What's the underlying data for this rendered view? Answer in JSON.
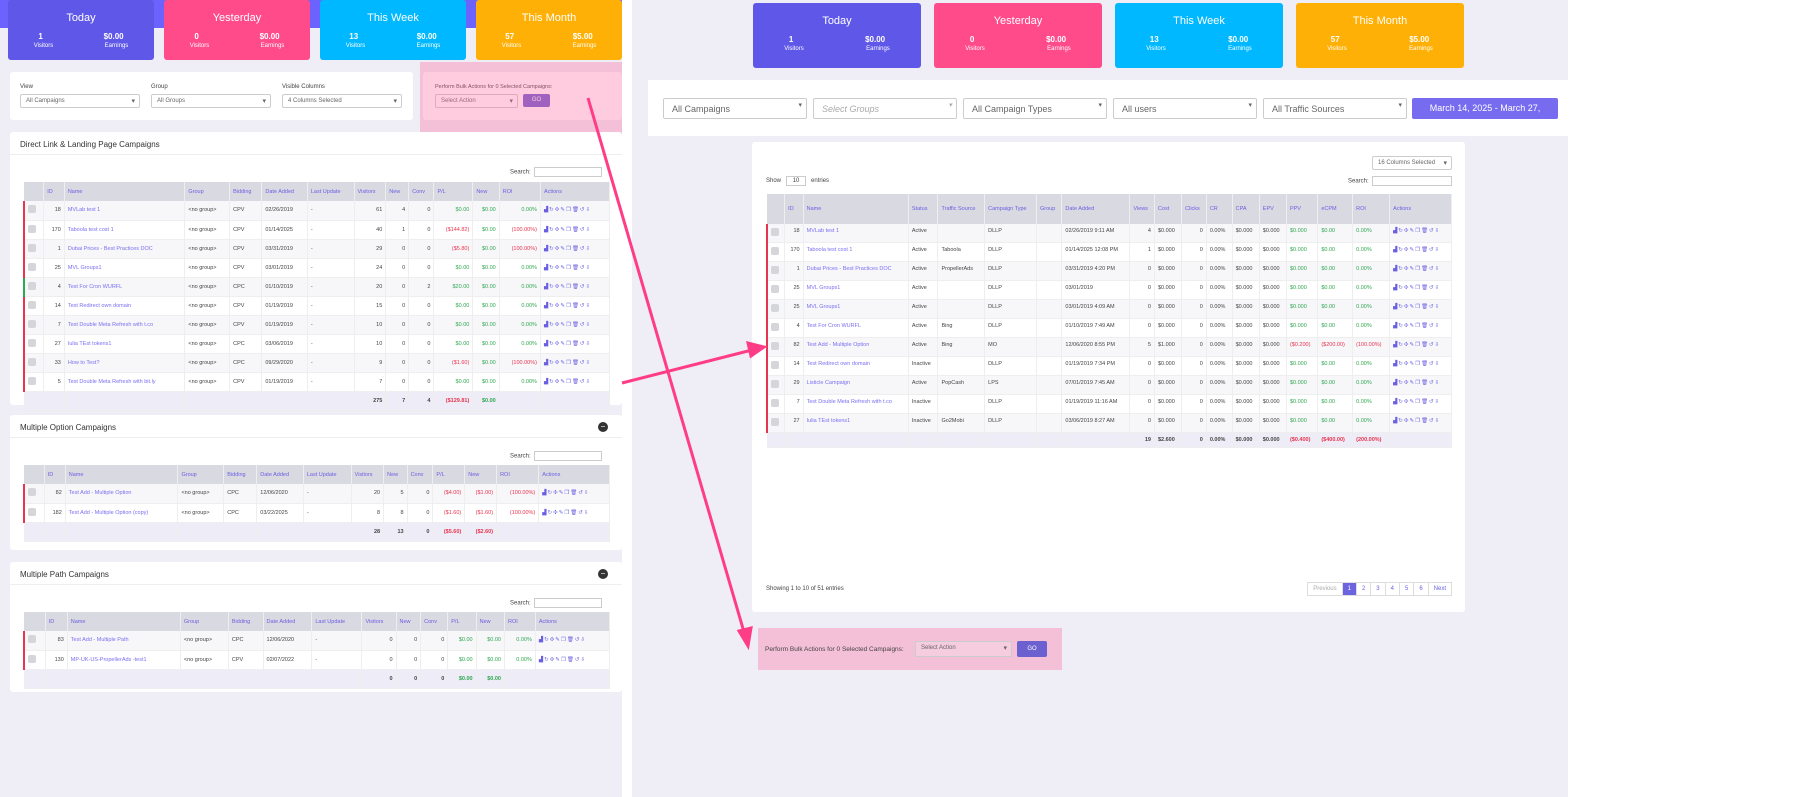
{
  "cards": [
    {
      "title": "Today",
      "visitors": "1",
      "earnings": "$0.00",
      "color": "#5f57e8"
    },
    {
      "title": "Yesterday",
      "visitors": "0",
      "earnings": "$0.00",
      "color": "#ff4b8a"
    },
    {
      "title": "This Week",
      "visitors": "13",
      "earnings": "$0.00",
      "color": "#00b8ff"
    },
    {
      "title": "This Month",
      "visitors": "57",
      "earnings": "$5.00",
      "color": "#ffb006"
    }
  ],
  "labels": {
    "visitors": "Visitors",
    "earnings": "Earnings",
    "search": "Search:",
    "show": "Show",
    "entries": "entries"
  },
  "left": {
    "filters": {
      "view_label": "View",
      "view": "All Campaigns",
      "group_label": "Group",
      "group": "All Groups",
      "cols_label": "Visible Columns",
      "cols": "4 Columns Selected"
    },
    "bulk": {
      "label": "Perform Bulk Actions for 0 Selected Campaigns:",
      "select": "Select Action",
      "go": "GO"
    },
    "headers": [
      "",
      "ID",
      "Name",
      "Group",
      "Bidding",
      "Date Added",
      "Last Update",
      "Visitors",
      "New",
      "Conv",
      "P/L",
      "New",
      "ROI",
      "Actions"
    ],
    "sections": [
      {
        "title": "Direct Link & Landing Page Campaigns",
        "rows": [
          [
            "red",
            "18",
            "MVLab test 1",
            "<no group>",
            "CPV",
            "02/26/2019",
            "-",
            "61",
            "4",
            "0",
            "$0.00",
            "$0.00",
            "0.00%"
          ],
          [
            "red",
            "170",
            "Taboola test cost 1",
            "<no group>",
            "CPV",
            "01/14/2025",
            "-",
            "40",
            "1",
            "0",
            "($144.82)",
            "$0.00",
            "(100.00%)"
          ],
          [
            "red",
            "1",
            "Dubai Prices - Best Practices DOC",
            "<no group>",
            "CPV",
            "03/31/2019",
            "-",
            "29",
            "0",
            "0",
            "($5.80)",
            "$0.00",
            "(100.00%)"
          ],
          [
            "red",
            "25",
            "MVL Groups1",
            "<no group>",
            "CPV",
            "03/01/2019",
            "-",
            "24",
            "0",
            "0",
            "$0.00",
            "$0.00",
            "0.00%"
          ],
          [
            "green",
            "4",
            "Test For Cron WURFL",
            "<no group>",
            "CPC",
            "01/10/2019",
            "-",
            "20",
            "0",
            "2",
            "$20.00",
            "$0.00",
            "0.00%"
          ],
          [
            "red",
            "14",
            "Test Redirect own domain",
            "<no group>",
            "CPV",
            "01/19/2019",
            "-",
            "15",
            "0",
            "0",
            "$0.00",
            "$0.00",
            "0.00%"
          ],
          [
            "red",
            "7",
            "Test Double Meta Refresh with t.co",
            "<no group>",
            "CPV",
            "01/19/2019",
            "-",
            "10",
            "0",
            "0",
            "$0.00",
            "$0.00",
            "0.00%"
          ],
          [
            "red",
            "27",
            "Iulia TEst tokens1",
            "<no group>",
            "CPC",
            "03/06/2019",
            "-",
            "10",
            "0",
            "0",
            "$0.00",
            "$0.00",
            "0.00%"
          ],
          [
            "red",
            "33",
            "How to Test?",
            "<no group>",
            "CPC",
            "09/29/2020",
            "-",
            "9",
            "0",
            "0",
            "($1.60)",
            "$0.00",
            "(100.00%)"
          ],
          [
            "red",
            "5",
            "Test Double Meta Refresh with bit.ly",
            "<no group>",
            "CPV",
            "01/19/2019",
            "-",
            "7",
            "0",
            "0",
            "$0.00",
            "$0.00",
            "0.00%"
          ]
        ],
        "totals": [
          "275",
          "7",
          "4",
          "($129.81)",
          "$0.00"
        ]
      },
      {
        "title": "Multiple Option Campaigns",
        "rows": [
          [
            "red",
            "82",
            "Test Add - Multiple Option",
            "<no group>",
            "CPC",
            "12/06/2020",
            "-",
            "20",
            "5",
            "0",
            "($4.00)",
            "($1.00)",
            "(100.00%)"
          ],
          [
            "red",
            "182",
            "Test Add - Multiple Option (copy)",
            "<no group>",
            "CPC",
            "03/22/2025",
            "-",
            "8",
            "8",
            "0",
            "($1.60)",
            "($1.60)",
            "(100.00%)"
          ]
        ],
        "totals": [
          "28",
          "13",
          "0",
          "($5.60)",
          "($2.60)"
        ]
      },
      {
        "title": "Multiple Path Campaigns",
        "rows": [
          [
            "red",
            "83",
            "Test Add - Multiple Path",
            "<no group>",
            "CPC",
            "12/06/2020",
            "-",
            "0",
            "0",
            "0",
            "$0.00",
            "$0.00",
            "0.00%"
          ],
          [
            "red",
            "130",
            "MP-UK-US-PropellerAds -test1",
            "<no group>",
            "CPV",
            "02/07/2022",
            "-",
            "0",
            "0",
            "0",
            "$0.00",
            "$0.00",
            "0.00%"
          ]
        ],
        "totals": [
          "0",
          "0",
          "0",
          "$0.00",
          "$0.00"
        ]
      }
    ]
  },
  "right": {
    "filters": [
      "All Campaigns",
      "Select Groups",
      "All Campaign Types",
      "All users",
      "All Traffic Sources"
    ],
    "date_range": "March 14, 2025 - March 27,",
    "cols": "16 Columns Selected",
    "show": "10",
    "headers": [
      "",
      "ID",
      "Name",
      "Status",
      "Traffic Source",
      "Campaign Type",
      "Group",
      "Date Added",
      "Views",
      "Cost",
      "Clicks",
      "CR",
      "CPA",
      "EPV",
      "PPV",
      "eCPM",
      "ROI",
      "Actions"
    ],
    "rows": [
      [
        "18",
        "MVLab test 1",
        "Active",
        "",
        "DLLP",
        "",
        "02/26/2019 9:11 AM",
        "4",
        "$0.000",
        "0",
        "0.00%",
        "$0.000",
        "$0.000",
        "$0.000",
        "$0.00",
        "0.00%"
      ],
      [
        "170",
        "Taboola test cost 1",
        "Active",
        "Taboola",
        "DLLP",
        "",
        "01/14/2025 12:08 PM",
        "1",
        "$0.000",
        "0",
        "0.00%",
        "$0.000",
        "$0.000",
        "$0.000",
        "$0.00",
        "0.00%"
      ],
      [
        "1",
        "Dubai Prices - Best Practices DOC",
        "Active",
        "PropellerAds",
        "DLLP",
        "",
        "03/31/2019 4:20 PM",
        "0",
        "$0.000",
        "0",
        "0.00%",
        "$0.000",
        "$0.000",
        "$0.000",
        "$0.00",
        "0.00%"
      ],
      [
        "25",
        "MVL Groups1",
        "Active",
        "",
        "DLLP",
        "",
        "03/01/2019",
        "0",
        "$0.000",
        "0",
        "0.00%",
        "$0.000",
        "$0.000",
        "$0.000",
        "$0.00",
        "0.00%"
      ],
      [
        "25",
        "MVL Groups1",
        "Active",
        "",
        "DLLP",
        "",
        "03/01/2019 4:09 AM",
        "0",
        "$0.000",
        "0",
        "0.00%",
        "$0.000",
        "$0.000",
        "$0.000",
        "$0.00",
        "0.00%"
      ],
      [
        "4",
        "Test For Cron WURFL",
        "Active",
        "Bing",
        "DLLP",
        "",
        "01/10/2019 7:49 AM",
        "0",
        "$0.000",
        "0",
        "0.00%",
        "$0.000",
        "$0.000",
        "$0.000",
        "$0.00",
        "0.00%"
      ],
      [
        "82",
        "Test Add - Multiple Option",
        "Active",
        "Bing",
        "MO",
        "",
        "12/06/2020 8:55 PM",
        "5",
        "$1.000",
        "0",
        "0.00%",
        "$0.000",
        "$0.000",
        "($0.200)",
        "($200.00)",
        "(100.00%)"
      ],
      [
        "14",
        "Test Redirect own domain",
        "Inactive",
        "",
        "DLLP",
        "",
        "01/19/2019 7:34 PM",
        "0",
        "$0.000",
        "0",
        "0.00%",
        "$0.000",
        "$0.000",
        "$0.000",
        "$0.00",
        "0.00%"
      ],
      [
        "29",
        "Listicle Campaign",
        "Active",
        "PopCash",
        "LPS",
        "",
        "07/01/2019 7:45 AM",
        "0",
        "$0.000",
        "0",
        "0.00%",
        "$0.000",
        "$0.000",
        "$0.000",
        "$0.00",
        "0.00%"
      ],
      [
        "7",
        "Test Double Meta Refresh with t.co",
        "Inactive",
        "",
        "DLLP",
        "",
        "01/19/2019 11:16 AM",
        "0",
        "$0.000",
        "0",
        "0.00%",
        "$0.000",
        "$0.000",
        "$0.000",
        "$0.00",
        "0.00%"
      ],
      [
        "27",
        "Iulia TEst tokens1",
        "Inactive",
        "Go2Mobi",
        "DLLP",
        "",
        "03/06/2019 8:27 AM",
        "0",
        "$0.000",
        "0",
        "0.00%",
        "$0.000",
        "$0.000",
        "$0.000",
        "$0.00",
        "0.00%"
      ]
    ],
    "totals": [
      "19",
      "$2.600",
      "0",
      "0.00%",
      "$0.000",
      "$0.000",
      "($0.400)",
      "($400.00)",
      "(200.00%)"
    ],
    "info": "Showing 1 to 10 of 51 entries",
    "pages": [
      "Previous",
      "1",
      "2",
      "3",
      "4",
      "5",
      "6",
      "Next"
    ],
    "bulk": {
      "label": "Perform Bulk Actions for 0 Selected Campaigns:",
      "select": "Select Action",
      "go": "GO"
    }
  },
  "actions_glyphs": "▟↻✣✎❐🗑↺⇩",
  "colors": {
    "accent": "#6c63ff",
    "annotation": "#ff3d87",
    "negative": "#e8344e",
    "positive": "#2fa84f"
  }
}
